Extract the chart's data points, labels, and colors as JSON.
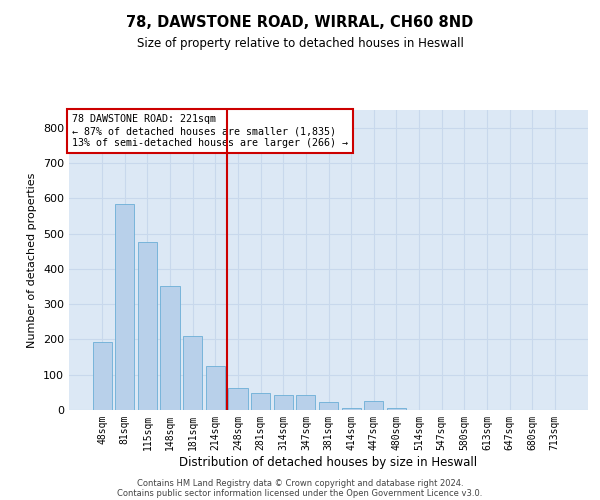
{
  "title_line1": "78, DAWSTONE ROAD, WIRRAL, CH60 8ND",
  "title_line2": "Size of property relative to detached houses in Heswall",
  "xlabel": "Distribution of detached houses by size in Heswall",
  "ylabel": "Number of detached properties",
  "categories": [
    "48sqm",
    "81sqm",
    "115sqm",
    "148sqm",
    "181sqm",
    "214sqm",
    "248sqm",
    "281sqm",
    "314sqm",
    "347sqm",
    "381sqm",
    "414sqm",
    "447sqm",
    "480sqm",
    "514sqm",
    "547sqm",
    "580sqm",
    "613sqm",
    "647sqm",
    "680sqm",
    "713sqm"
  ],
  "values": [
    193,
    583,
    477,
    350,
    210,
    125,
    62,
    47,
    43,
    42,
    22,
    7,
    26,
    7,
    0,
    0,
    0,
    0,
    0,
    0,
    0
  ],
  "bar_color": "#b8d0ea",
  "bar_edge_color": "#6baed6",
  "grid_color": "#c8d8ec",
  "bg_color": "#dce8f5",
  "vline_x": 5.5,
  "vline_color": "#cc0000",
  "annotation_box_text": "78 DAWSTONE ROAD: 221sqm\n← 87% of detached houses are smaller (1,835)\n13% of semi-detached houses are larger (266) →",
  "annotation_box_color": "#cc0000",
  "ylim": [
    0,
    850
  ],
  "yticks": [
    0,
    100,
    200,
    300,
    400,
    500,
    600,
    700,
    800
  ],
  "footer_line1": "Contains HM Land Registry data © Crown copyright and database right 2024.",
  "footer_line2": "Contains public sector information licensed under the Open Government Licence v3.0."
}
